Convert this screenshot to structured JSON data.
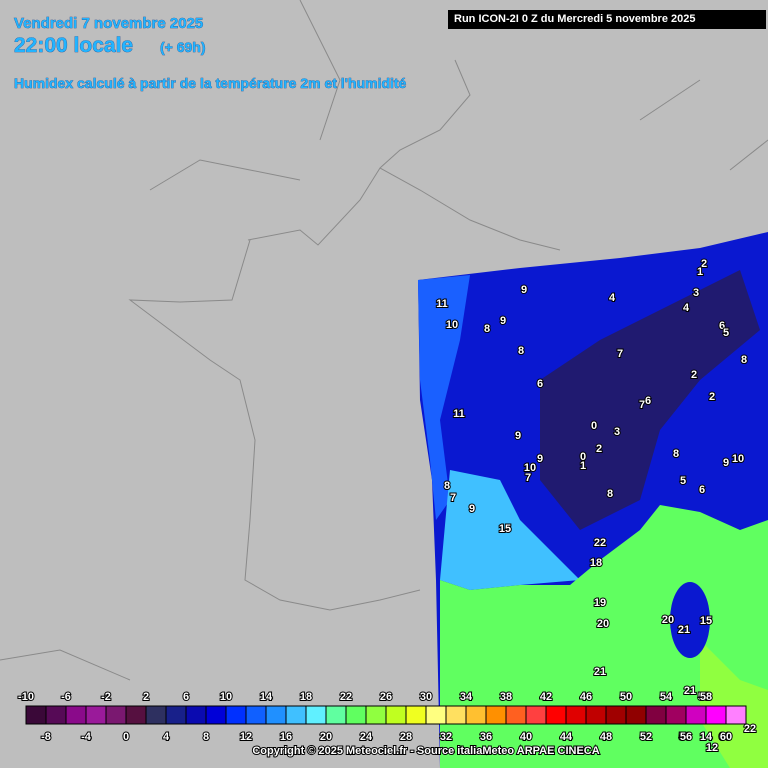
{
  "header": {
    "date": "Vendredi 7 novembre 2025",
    "time": "22:00 locale",
    "lead": "(+ 69h)",
    "description": "Humidex calculé à partir de la température 2m et l'humidité",
    "run": "Run ICON-2I 0 Z du Mercredi 5 novembre 2025"
  },
  "map_labels": [
    "2",
    "1",
    "3",
    "4",
    "4",
    "9",
    "11",
    "10",
    "8",
    "9",
    "6",
    "5",
    "8",
    "7",
    "8",
    "2",
    "6",
    "7",
    "6",
    "2",
    "11",
    "0",
    "3",
    "9",
    "2",
    "0",
    "1",
    "9",
    "10",
    "7",
    "8",
    "9",
    "10",
    "8",
    "7",
    "5",
    "6",
    "8",
    "9",
    "15",
    "22",
    "18",
    "19",
    "20",
    "20",
    "21",
    "15",
    "21",
    "21",
    "58",
    "56",
    "14",
    "60",
    "12",
    "22"
  ],
  "colorbar": {
    "ticks": [
      -10,
      -8,
      -6,
      -4,
      -2,
      0,
      2,
      4,
      6,
      8,
      10,
      12,
      14,
      16,
      18,
      20,
      22,
      24,
      26,
      28,
      30,
      32,
      34,
      36,
      38,
      40,
      42,
      44,
      46,
      48,
      50,
      52,
      54,
      56,
      58,
      60
    ],
    "colors": [
      "#3a0838",
      "#560a56",
      "#8a0a8a",
      "#9a1a9a",
      "#7a1870",
      "#561040",
      "#2e3060",
      "#18208a",
      "#0a0ab0",
      "#0000d8",
      "#0030ff",
      "#1060ff",
      "#2090ff",
      "#40c0ff",
      "#60f0ff",
      "#60ffa0",
      "#60ff60",
      "#90ff40",
      "#c0ff20",
      "#f0ff20",
      "#ffff80",
      "#ffe060",
      "#ffc030",
      "#ff9000",
      "#ff6020",
      "#ff4040",
      "#ff0000",
      "#e00000",
      "#c00000",
      "#a00000",
      "#900000",
      "#800040",
      "#a00060",
      "#d000c0",
      "#ff00ff",
      "#ff80ff"
    ]
  },
  "footer": {
    "copyright": "Copyright © 2025 Meteociel.fr - Source italiaMeteo ARPAE CINECA"
  }
}
